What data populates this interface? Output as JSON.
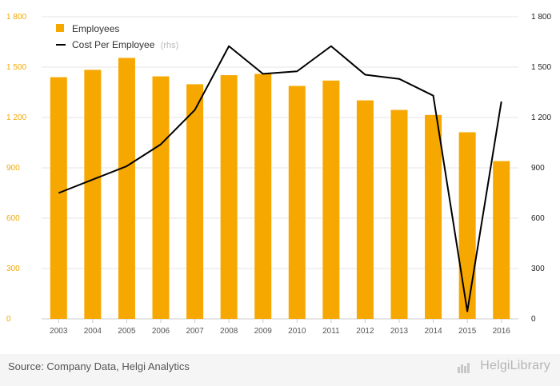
{
  "chart_data": {
    "type": "bar+line",
    "categories": [
      "2003",
      "2004",
      "2005",
      "2006",
      "2007",
      "2008",
      "2009",
      "2010",
      "2011",
      "2012",
      "2013",
      "2014",
      "2015",
      "2016"
    ],
    "series": [
      {
        "name": "Employees",
        "axis": "left",
        "kind": "bar",
        "color": "#f7a800",
        "values": [
          1440,
          1484,
          1555,
          1445,
          1398,
          1452,
          1460,
          1388,
          1420,
          1302,
          1245,
          1215,
          1112,
          940
        ]
      },
      {
        "name": "Cost Per Employee",
        "axis": "right",
        "kind": "line",
        "color": "#000000",
        "values": [
          750,
          830,
          910,
          1040,
          1245,
          1625,
          1460,
          1475,
          1625,
          1455,
          1430,
          1330,
          45,
          1295
        ]
      }
    ],
    "legend": {
      "position": "top-left",
      "rhs_note": "(rhs)"
    },
    "y_left": {
      "range": [
        0,
        1800
      ],
      "ticks": [
        "0",
        "300",
        "600",
        "900",
        "1 200",
        "1 500",
        "1 800"
      ]
    },
    "y_right": {
      "range": [
        0,
        1800
      ],
      "ticks": [
        "0",
        "300",
        "600",
        "900",
        "1 200",
        "1 500",
        "1 800"
      ]
    },
    "grid": true
  },
  "footer": {
    "source": "Source: Company Data, Helgi Analytics",
    "brand": "HelgiLibrary"
  }
}
